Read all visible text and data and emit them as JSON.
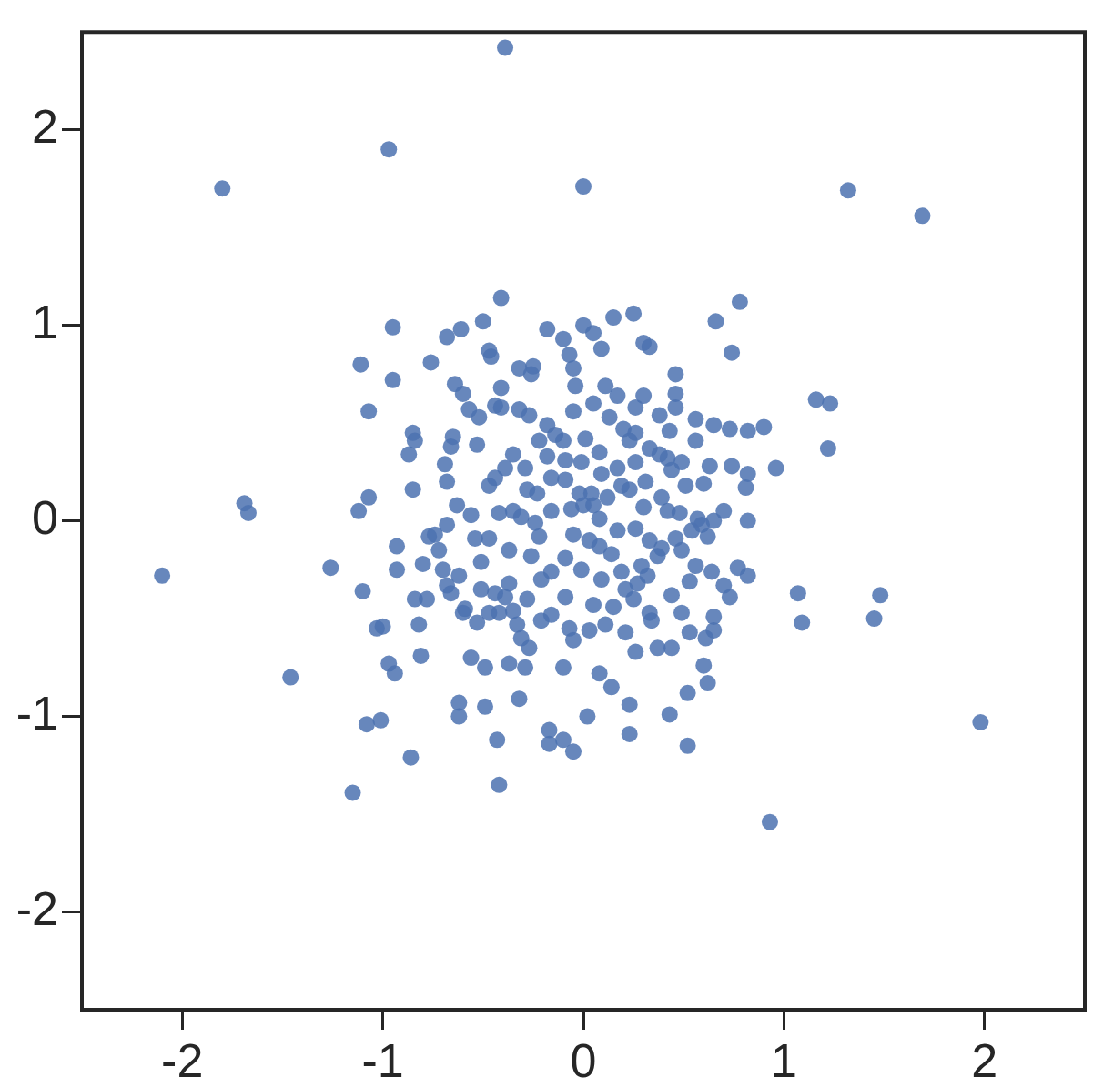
{
  "chart_data": {
    "type": "scatter",
    "color": "#4c72b0",
    "marker": "circle",
    "grid": false,
    "legend": false,
    "xlim": [
      -2.5,
      2.5
    ],
    "ylim": [
      -2.5,
      2.5
    ],
    "xticks": [
      -2,
      -1,
      0,
      1,
      2
    ],
    "yticks": [
      -2,
      -1,
      0,
      1,
      2
    ],
    "x": [
      -0.39,
      -0.97,
      -1.8,
      0.0,
      1.32,
      1.69,
      -0.41,
      0.78,
      0.25,
      0.15,
      -0.5,
      -0.61,
      -0.68,
      -0.18,
      0.0,
      0.05,
      0.66,
      0.74,
      0.3,
      0.33,
      -0.1,
      -0.07,
      -0.05,
      0.09,
      -0.25,
      -1.11,
      -0.95,
      -0.76,
      -0.47,
      -0.46,
      -0.32,
      -0.26,
      0.46,
      -0.95,
      -1.07,
      -0.64,
      -0.41,
      -0.04,
      0.11,
      0.17,
      0.3,
      0.46,
      0.56,
      0.46,
      1.16,
      1.23,
      1.22,
      0.96,
      0.73,
      0.9,
      0.82,
      0.65,
      -0.85,
      -0.84,
      -0.87,
      -0.66,
      -0.69,
      -0.65,
      -0.52,
      -0.53,
      -0.44,
      -0.6,
      -0.57,
      -0.41,
      -0.32,
      -0.27,
      -0.18,
      -0.14,
      -0.05,
      0.05,
      0.13,
      0.26,
      0.38,
      0.43,
      0.56,
      0.82,
      0.81,
      0.74,
      0.63,
      0.6,
      0.51,
      0.42,
      0.26,
      0.31,
      0.39,
      0.48,
      0.7,
      0.82,
      0.59,
      0.62,
      0.46,
      0.39,
      0.29,
      0.27,
      0.25,
      0.33,
      0.44,
      0.44,
      0.49,
      0.53,
      0.65,
      0.53,
      0.64,
      0.77,
      0.82,
      0.73,
      0.61,
      0.52,
      0.6,
      0.62,
      0.43,
      0.23,
      0.14,
      0.08,
      0.02,
      0.23,
      0.52,
      0.93,
      1.98,
      1.45,
      1.48,
      1.07,
      1.09,
      -0.05,
      -0.17,
      -0.1,
      -0.17,
      -0.42,
      -0.43,
      -0.62,
      -0.62,
      -0.49,
      -0.37,
      -0.32,
      -0.27,
      -0.29,
      -0.49,
      -0.1,
      -0.05,
      0.03,
      -0.07,
      -0.86,
      -1.15,
      -1.08,
      -1.01,
      -0.97,
      -0.94,
      -0.81,
      -0.82,
      -0.84,
      -1.03,
      -1.0,
      -1.1,
      -1.26,
      -1.46,
      -2.1,
      -1.69,
      -1.67,
      -1.12,
      -1.07,
      -0.85,
      -0.93,
      -0.93,
      -0.77,
      -0.74,
      -0.8,
      -0.7,
      -0.68,
      -0.72,
      -0.68,
      -0.63,
      -0.68,
      -0.56,
      -0.47,
      -0.42,
      -0.51,
      -0.54,
      -0.47,
      -0.62,
      -0.59,
      -0.53,
      -0.51,
      -0.44,
      -0.47,
      -0.39,
      -0.35,
      -0.37,
      -0.37,
      -0.35,
      -0.31,
      -0.28,
      -0.29,
      -0.35,
      -0.39,
      -0.44,
      -0.22,
      -0.18,
      -0.16,
      -0.23,
      -0.16,
      -0.24,
      -0.22,
      -0.26,
      -0.16,
      -0.09,
      -0.05,
      0.03,
      0.08,
      0.14,
      0.19,
      0.09,
      0.15,
      0.05,
      -0.01,
      -0.09,
      -0.21,
      -0.28,
      -0.1,
      0.01,
      -0.01,
      0.08,
      0.17,
      0.23,
      0.2,
      0.33,
      -0.09,
      -0.02,
      -0.06,
      0.05,
      0.04,
      0.12,
      0.23,
      0.3,
      0.26,
      0.17,
      0.08,
      0.09,
      0.44,
      0.49,
      0.38,
      0.33,
      0.49,
      0.54,
      0.42,
      -0.21,
      -0.16,
      0.21,
      0.11,
      0.37,
      0.26,
      -0.56,
      -0.6,
      -0.66,
      -0.78,
      -0.31,
      -0.33,
      0.57,
      0.65,
      0.7,
      0.56,
      0.37,
      0.32,
      0.21,
      0.34,
      0.65,
      -0.42,
      -0.09,
      0.26,
      0.19,
      0.0
    ],
    "values": [
      2.42,
      1.9,
      1.7,
      1.71,
      1.69,
      1.56,
      1.14,
      1.12,
      1.06,
      1.04,
      1.02,
      0.98,
      0.94,
      0.98,
      1.0,
      0.96,
      1.02,
      0.86,
      0.91,
      0.89,
      0.93,
      0.85,
      0.78,
      0.88,
      0.79,
      0.8,
      0.99,
      0.81,
      0.87,
      0.84,
      0.78,
      0.75,
      0.75,
      0.72,
      0.56,
      0.7,
      0.68,
      0.69,
      0.69,
      0.64,
      0.64,
      0.65,
      0.52,
      0.58,
      0.62,
      0.6,
      0.37,
      0.27,
      0.47,
      0.48,
      0.46,
      0.49,
      0.45,
      0.41,
      0.34,
      0.38,
      0.29,
      0.43,
      0.53,
      0.39,
      0.59,
      0.65,
      0.57,
      0.58,
      0.57,
      0.54,
      0.49,
      0.44,
      0.56,
      0.6,
      0.53,
      0.58,
      0.54,
      0.46,
      0.41,
      0.24,
      0.17,
      0.28,
      0.28,
      0.19,
      0.18,
      0.32,
      0.3,
      0.2,
      0.12,
      0.04,
      0.05,
      0.0,
      -0.02,
      -0.08,
      -0.09,
      -0.14,
      -0.23,
      -0.32,
      -0.4,
      -0.47,
      -0.38,
      -0.65,
      -0.47,
      -0.57,
      -0.49,
      -0.31,
      -0.26,
      -0.24,
      -0.28,
      -0.39,
      -0.6,
      -0.88,
      -0.74,
      -0.83,
      -0.99,
      -0.94,
      -0.85,
      -0.78,
      -1.0,
      -1.09,
      -1.15,
      -1.54,
      -1.03,
      -0.5,
      -0.38,
      -0.37,
      -0.52,
      -1.18,
      -1.14,
      -1.12,
      -1.07,
      -1.35,
      -1.12,
      -0.93,
      -1.0,
      -0.95,
      -0.73,
      -0.91,
      -0.65,
      -0.75,
      -0.75,
      -0.75,
      -0.61,
      -0.56,
      -0.55,
      -1.21,
      -1.39,
      -1.04,
      -1.02,
      -0.73,
      -0.78,
      -0.69,
      -0.53,
      -0.4,
      -0.55,
      -0.54,
      -0.36,
      -0.24,
      -0.8,
      -0.28,
      0.09,
      0.04,
      0.05,
      0.12,
      0.16,
      -0.25,
      -0.13,
      -0.08,
      -0.07,
      -0.22,
      -0.25,
      -0.33,
      -0.15,
      -0.02,
      0.08,
      0.2,
      0.03,
      0.18,
      0.04,
      -0.21,
      -0.09,
      -0.09,
      -0.28,
      -0.45,
      -0.52,
      -0.35,
      -0.37,
      -0.47,
      -0.39,
      -0.46,
      -0.32,
      -0.15,
      0.05,
      0.02,
      0.16,
      0.27,
      0.34,
      0.27,
      0.22,
      0.41,
      0.33,
      0.22,
      0.14,
      0.05,
      -0.01,
      -0.08,
      -0.18,
      -0.26,
      -0.19,
      -0.07,
      -0.1,
      -0.13,
      -0.17,
      -0.26,
      -0.3,
      -0.44,
      -0.43,
      -0.25,
      -0.39,
      -0.3,
      -0.4,
      0.41,
      0.42,
      0.3,
      0.35,
      0.27,
      0.41,
      0.47,
      0.37,
      0.21,
      0.14,
      0.06,
      0.08,
      0.14,
      0.12,
      0.16,
      0.07,
      -0.04,
      -0.05,
      0.01,
      0.24,
      0.26,
      0.3,
      0.34,
      -0.1,
      -0.15,
      -0.05,
      0.05,
      -0.51,
      -0.48,
      -0.57,
      -0.53,
      -0.65,
      -0.67,
      -0.7,
      -0.47,
      -0.37,
      -0.4,
      -0.6,
      -0.53,
      0.01,
      0.0,
      -0.33,
      -0.23,
      -0.18,
      -0.28,
      -0.35,
      -0.51,
      -0.56,
      -0.47,
      0.31,
      0.45,
      0.18,
      0.08
    ]
  }
}
